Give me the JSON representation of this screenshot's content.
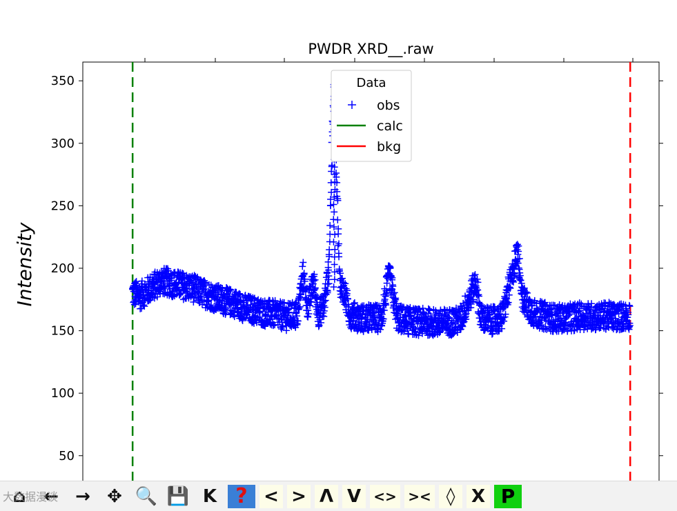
{
  "toolbar": {
    "buttons": [
      {
        "name": "home-button",
        "glyph": "⌂"
      },
      {
        "name": "back-button",
        "glyph": "←"
      },
      {
        "name": "forward-button",
        "glyph": "→"
      },
      {
        "name": "pan-button",
        "glyph": "✥"
      },
      {
        "name": "zoom-button",
        "glyph": "🔍"
      },
      {
        "name": "save-button",
        "glyph": "💾"
      },
      {
        "name": "key-button",
        "glyph": "K"
      },
      {
        "name": "help-button",
        "glyph": "?"
      },
      {
        "name": "shift-left-button",
        "glyph": "<"
      },
      {
        "name": "shift-right-button",
        "glyph": ">"
      },
      {
        "name": "shift-up-button",
        "glyph": "Λ"
      },
      {
        "name": "shift-down-button",
        "glyph": "V"
      },
      {
        "name": "expand-x-button",
        "glyph": "<>"
      },
      {
        "name": "contract-x-button",
        "glyph": "><"
      },
      {
        "name": "expand-y-button",
        "glyph": "◊"
      },
      {
        "name": "contract-y-button",
        "glyph": "X"
      },
      {
        "name": "p-button",
        "glyph": "P"
      }
    ]
  },
  "watermark": "大数据漫谈",
  "colors": {
    "obs": "#0000ff",
    "calc": "#008000",
    "bkg": "#ff0000"
  },
  "chart_data": {
    "type": "scatter",
    "title": "PWDR XRD__.raw",
    "xlabel": "",
    "ylabel": "Intensity",
    "ylim": [
      30,
      365
    ],
    "xlim": [
      0,
      100
    ],
    "yticks": [
      50,
      100,
      150,
      200,
      250,
      300,
      350
    ],
    "legend": {
      "title": "Data",
      "position": "top-center",
      "entries": [
        "obs",
        "calc",
        "bkg"
      ]
    },
    "limits": {
      "calc_x": 4.5,
      "bkg_x": 99.5
    },
    "obs_profile": [
      [
        4.5,
        180
      ],
      [
        6,
        178
      ],
      [
        8,
        184
      ],
      [
        10,
        190
      ],
      [
        12,
        188
      ],
      [
        14,
        186
      ],
      [
        16,
        184
      ],
      [
        18,
        180
      ],
      [
        20,
        177
      ],
      [
        22,
        174
      ],
      [
        24,
        172
      ],
      [
        26,
        168
      ],
      [
        28,
        166
      ],
      [
        30,
        164
      ],
      [
        32,
        163
      ],
      [
        34,
        161
      ],
      [
        36,
        163
      ],
      [
        37,
        195
      ],
      [
        38,
        168
      ],
      [
        39,
        190
      ],
      [
        40,
        164
      ],
      [
        41,
        170
      ],
      [
        42,
        200
      ],
      [
        42.6,
        300
      ],
      [
        43,
        348
      ],
      [
        43.4,
        280
      ],
      [
        44,
        190
      ],
      [
        45,
        178
      ],
      [
        46,
        163
      ],
      [
        48,
        160
      ],
      [
        50,
        160
      ],
      [
        52,
        160
      ],
      [
        53.5,
        195
      ],
      [
        55,
        160
      ],
      [
        57,
        158
      ],
      [
        59,
        157
      ],
      [
        61,
        157
      ],
      [
        63,
        156
      ],
      [
        65,
        157
      ],
      [
        67,
        158
      ],
      [
        69,
        178
      ],
      [
        70,
        190
      ],
      [
        71,
        160
      ],
      [
        73,
        158
      ],
      [
        75,
        160
      ],
      [
        77,
        195
      ],
      [
        78,
        215
      ],
      [
        79,
        175
      ],
      [
        81,
        164
      ],
      [
        83,
        162
      ],
      [
        85,
        160
      ],
      [
        87,
        160
      ],
      [
        89,
        161
      ],
      [
        91,
        162
      ],
      [
        93,
        161
      ],
      [
        95,
        162
      ],
      [
        97,
        161
      ],
      [
        99.5,
        162
      ]
    ]
  }
}
